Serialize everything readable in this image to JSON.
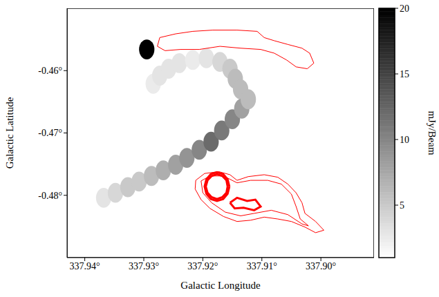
{
  "chart_data": {
    "type": "heatmap",
    "xlabel": "Galactic Longitude",
    "ylabel": "Galactic Latitude",
    "xlim": [
      337.943,
      337.891
    ],
    "ylim": [
      -0.49,
      -0.45
    ],
    "xticks": [
      {
        "value": 337.94,
        "label": "337.94°"
      },
      {
        "value": 337.93,
        "label": "337.93°"
      },
      {
        "value": 337.92,
        "label": "337.92°"
      },
      {
        "value": 337.91,
        "label": "337.91°"
      },
      {
        "value": 337.9,
        "label": "337.90°"
      }
    ],
    "yticks": [
      {
        "value": -0.46,
        "label": "-0.46°"
      },
      {
        "value": -0.47,
        "label": "-0.47°"
      },
      {
        "value": -0.48,
        "label": "-0.48°"
      }
    ],
    "grid": false,
    "cell_size": [
      0.0026,
      0.0032
    ],
    "cells": [
      [
        337.9284,
        -0.4621,
        2.5
      ],
      [
        337.9273,
        -0.4608,
        3
      ],
      [
        337.9258,
        -0.4597,
        3
      ],
      [
        337.924,
        -0.4588,
        3
      ],
      [
        337.9217,
        -0.4583,
        2.5
      ],
      [
        337.9194,
        -0.458,
        3
      ],
      [
        337.9171,
        -0.4586,
        4
      ],
      [
        337.9154,
        -0.4597,
        5
      ],
      [
        337.9145,
        -0.4613,
        6
      ],
      [
        337.9136,
        -0.463,
        6
      ],
      [
        337.9368,
        -0.4804,
        3
      ],
      [
        337.9348,
        -0.4796,
        4
      ],
      [
        337.9327,
        -0.4787,
        5
      ],
      [
        337.9308,
        -0.4778,
        5
      ],
      [
        337.9287,
        -0.4769,
        6
      ],
      [
        337.9267,
        -0.476,
        7
      ],
      [
        337.9246,
        -0.4751,
        8
      ],
      [
        337.9227,
        -0.474,
        9
      ],
      [
        337.9206,
        -0.4727,
        10
      ],
      [
        337.9186,
        -0.4714,
        12
      ],
      [
        337.9168,
        -0.4696,
        11
      ],
      [
        337.915,
        -0.4678,
        10
      ],
      [
        337.9134,
        -0.4661,
        8
      ],
      [
        337.9123,
        -0.4646,
        6
      ],
      [
        337.9295,
        -0.4566,
        20
      ]
    ],
    "colorbar": {
      "label": "mJy/Beam",
      "range": [
        1,
        20
      ],
      "ticks": [
        5,
        10,
        15,
        20
      ]
    },
    "contours": {
      "color": "#ff0000",
      "lines": [
        {
          "line_style": "solid",
          "points": [
            [
              337.9277,
              -0.4561
            ],
            [
              337.9273,
              -0.4547
            ],
            [
              337.9246,
              -0.4541
            ],
            [
              337.9217,
              -0.4537
            ],
            [
              337.9183,
              -0.4535
            ],
            [
              337.9142,
              -0.4535
            ],
            [
              337.9108,
              -0.4537
            ],
            [
              337.9096,
              -0.4547
            ],
            [
              337.9079,
              -0.4552
            ],
            [
              337.9056,
              -0.4558
            ],
            [
              337.9032,
              -0.4564
            ],
            [
              337.9019,
              -0.4572
            ],
            [
              337.9012,
              -0.4588
            ],
            [
              337.9023,
              -0.4597
            ],
            [
              337.9042,
              -0.4594
            ],
            [
              337.9058,
              -0.4583
            ],
            [
              337.9079,
              -0.4572
            ],
            [
              337.9102,
              -0.4566
            ],
            [
              337.9136,
              -0.4564
            ],
            [
              337.9171,
              -0.4561
            ],
            [
              337.9206,
              -0.4566
            ],
            [
              337.9238,
              -0.4566
            ],
            [
              337.9264,
              -0.4568
            ],
            [
              337.9277,
              -0.4561
            ]
          ]
        },
        {
          "line_style": "solid",
          "points": [
            [
              337.9212,
              -0.4776
            ],
            [
              337.9197,
              -0.4765
            ],
            [
              337.9173,
              -0.4762
            ],
            [
              337.9154,
              -0.4767
            ],
            [
              337.9142,
              -0.4776
            ],
            [
              337.9123,
              -0.477
            ],
            [
              337.9096,
              -0.4767
            ],
            [
              337.9073,
              -0.4771
            ],
            [
              337.9056,
              -0.4782
            ],
            [
              337.9042,
              -0.4796
            ],
            [
              337.9032,
              -0.4812
            ],
            [
              337.9027,
              -0.4829
            ],
            [
              337.9009,
              -0.4842
            ],
            [
              337.8995,
              -0.4856
            ],
            [
              337.9009,
              -0.486
            ],
            [
              337.9027,
              -0.4851
            ],
            [
              337.905,
              -0.4842
            ],
            [
              337.9073,
              -0.4838
            ],
            [
              337.9096,
              -0.4835
            ],
            [
              337.9119,
              -0.484
            ],
            [
              337.9142,
              -0.4842
            ],
            [
              337.9165,
              -0.4834
            ],
            [
              337.9188,
              -0.4821
            ],
            [
              337.9203,
              -0.4807
            ],
            [
              337.9213,
              -0.479
            ],
            [
              337.9212,
              -0.4776
            ]
          ]
        },
        {
          "line_style": "solid",
          "points": [
            [
              337.9203,
              -0.4777
            ],
            [
              337.9188,
              -0.4769
            ],
            [
              337.9165,
              -0.4769
            ],
            [
              337.9142,
              -0.478
            ],
            [
              337.9119,
              -0.4776
            ],
            [
              337.909,
              -0.4776
            ],
            [
              337.9067,
              -0.4782
            ],
            [
              337.905,
              -0.4798
            ],
            [
              337.9042,
              -0.4818
            ],
            [
              337.9035,
              -0.4838
            ],
            [
              337.9021,
              -0.4849
            ],
            [
              337.9032,
              -0.4846
            ],
            [
              337.9056,
              -0.4831
            ],
            [
              337.9084,
              -0.4824
            ],
            [
              337.9113,
              -0.4829
            ],
            [
              337.9136,
              -0.4833
            ],
            [
              337.9162,
              -0.4827
            ],
            [
              337.9185,
              -0.4812
            ],
            [
              337.92,
              -0.4796
            ],
            [
              337.9203,
              -0.4777
            ]
          ]
        },
        {
          "line_style": "bold",
          "points": [
            [
              337.9154,
              -0.4812
            ],
            [
              337.9142,
              -0.4804
            ],
            [
              337.9125,
              -0.4809
            ],
            [
              337.9111,
              -0.4807
            ],
            [
              337.9102,
              -0.4818
            ],
            [
              337.9113,
              -0.4824
            ],
            [
              337.9131,
              -0.482
            ],
            [
              337.9146,
              -0.4821
            ],
            [
              337.9154,
              -0.4812
            ]
          ]
        },
        {
          "line_style": "bold",
          "points": [
            [
              337.9158,
              -0.4786
            ],
            [
              337.916,
              -0.4776
            ],
            [
              337.9167,
              -0.4769
            ],
            [
              337.9176,
              -0.4766
            ],
            [
              337.9185,
              -0.4769
            ],
            [
              337.9192,
              -0.4776
            ],
            [
              337.9195,
              -0.4786
            ],
            [
              337.9192,
              -0.4796
            ],
            [
              337.9185,
              -0.4803
            ],
            [
              337.9176,
              -0.4806
            ],
            [
              337.9167,
              -0.4803
            ],
            [
              337.916,
              -0.4796
            ],
            [
              337.9158,
              -0.4786
            ]
          ]
        },
        {
          "line_style": "bold",
          "points": [
            [
              337.9155,
              -0.4786
            ],
            [
              337.9158,
              -0.47745
            ],
            [
              337.91655,
              -0.4766
            ],
            [
              337.9176,
              -0.4763
            ],
            [
              337.91865,
              -0.4766
            ],
            [
              337.9194,
              -0.47745
            ],
            [
              337.9197,
              -0.4786
            ],
            [
              337.9194,
              -0.47975
            ],
            [
              337.91865,
              -0.4806
            ],
            [
              337.9176,
              -0.4809
            ],
            [
              337.91655,
              -0.4806
            ],
            [
              337.9158,
              -0.47975
            ],
            [
              337.9155,
              -0.4786
            ]
          ]
        }
      ]
    }
  }
}
